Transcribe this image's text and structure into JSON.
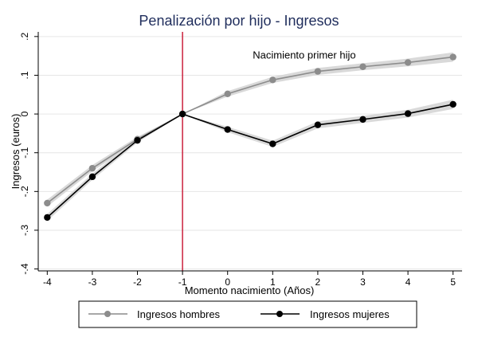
{
  "chart_data": {
    "type": "line",
    "title": "Penalización por hijo - Ingresos",
    "xlabel": "Momento nacimiento (Años)",
    "ylabel": "Ingresos (euros)",
    "x": [
      -4,
      -3,
      -2,
      -1,
      0,
      1,
      2,
      3,
      4,
      5
    ],
    "x_ticks": [
      "-4",
      "-3",
      "-2",
      "-1",
      "0",
      "1",
      "2",
      "3",
      "4",
      "5"
    ],
    "y_ticks": [
      {
        "value": 0.2,
        "label": ".2"
      },
      {
        "value": 0.1,
        "label": ".1"
      },
      {
        "value": 0,
        "label": "0"
      },
      {
        "value": -0.1,
        "label": "-.1"
      },
      {
        "value": -0.2,
        "label": "-.2"
      },
      {
        "value": -0.3,
        "label": "-.3"
      },
      {
        "value": -0.4,
        "label": "-.4"
      }
    ],
    "xlim": [
      -4.2,
      5.2
    ],
    "ylim": [
      -0.405,
      0.212
    ],
    "grid": true,
    "legend_position": "bottom",
    "series": [
      {
        "name": "Ingresos hombres",
        "color": "#8c8c8c",
        "band_color": "#d9d9d9",
        "values": [
          -0.23,
          -0.14,
          -0.065,
          0.0,
          0.052,
          0.088,
          0.11,
          0.122,
          0.133,
          0.147
        ],
        "ci_halfwidth": [
          0.009,
          0.008,
          0.006,
          0.0,
          0.007,
          0.008,
          0.009,
          0.009,
          0.01,
          0.012
        ]
      },
      {
        "name": "Ingresos mujeres",
        "color": "#000000",
        "band_color": "#d9d9d9",
        "values": [
          -0.267,
          -0.162,
          -0.068,
          0.0,
          -0.04,
          -0.077,
          -0.028,
          -0.014,
          0.001,
          0.025
        ],
        "ci_halfwidth": [
          0.009,
          0.008,
          0.006,
          0.0,
          0.007,
          0.008,
          0.009,
          0.009,
          0.01,
          0.012
        ]
      }
    ],
    "reference_line": {
      "x": -1,
      "color": "#c8102e"
    },
    "annotation": {
      "text": "Nacimiento primer hijo",
      "x": 1.7,
      "y": 0.143
    },
    "colors": {
      "title": "#1f2d5c",
      "grid": "#e6e6e6",
      "frame": "#000000"
    }
  }
}
